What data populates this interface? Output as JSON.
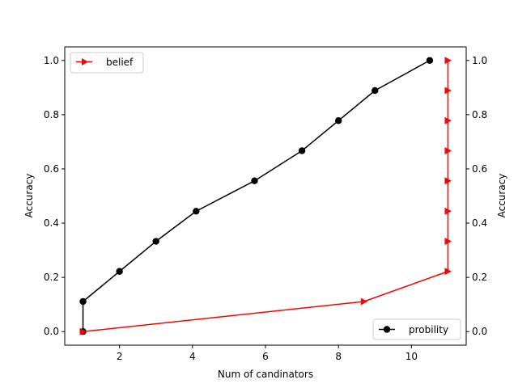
{
  "chart_data": {
    "type": "line",
    "xlabel": "Num of candinators",
    "ylabel_left": "Accuracy",
    "ylabel_right": "Accuracy",
    "xlim": [
      0.5,
      11.5
    ],
    "ylim": [
      -0.05,
      1.05
    ],
    "x_ticks": [
      "2",
      "4",
      "6",
      "8",
      "10"
    ],
    "y_ticks": [
      "0.0",
      "0.2",
      "0.4",
      "0.6",
      "0.8",
      "1.0"
    ],
    "grid": false,
    "series": [
      {
        "name": "probility",
        "axis": "left",
        "color": "#000000",
        "marker": "circle",
        "legend_position": "lower-right",
        "x": [
          1.0,
          1.0,
          2.0,
          3.0,
          4.1,
          5.7,
          7.0,
          8.0,
          9.0,
          10.5
        ],
        "y": [
          0.0,
          0.111,
          0.222,
          0.333,
          0.444,
          0.556,
          0.667,
          0.778,
          0.889,
          1.0
        ]
      },
      {
        "name": "belief",
        "axis": "right",
        "color": "#ff0000",
        "marker": "triangle-right",
        "legend_position": "upper-left",
        "x": [
          1.0,
          8.7,
          11.0,
          11.0,
          11.0,
          11.0,
          11.0,
          11.0,
          11.0,
          11.0
        ],
        "y": [
          0.0,
          0.111,
          0.222,
          0.333,
          0.444,
          0.556,
          0.667,
          0.778,
          0.889,
          1.0
        ]
      }
    ]
  }
}
